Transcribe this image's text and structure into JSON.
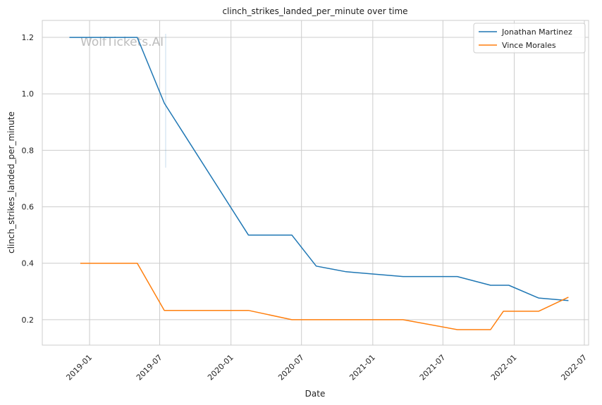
{
  "watermark": "WolfTickets.AI",
  "colors": {
    "series_1": "#1f77b4",
    "series_2": "#ff7f0e",
    "grid": "#cccccc",
    "frame": "#cccccc",
    "background": "#ffffff"
  },
  "chart_data": {
    "type": "line",
    "title": "clinch_strikes_landed_per_minute over time",
    "xlabel": "Date",
    "ylabel": "clinch_strikes_landed_per_minute",
    "x_type": "date",
    "xlim": [
      "2018-09-01",
      "2022-07-12"
    ],
    "ylim": [
      0.11,
      1.26
    ],
    "x_ticks": [
      "2019-01",
      "2019-07",
      "2020-01",
      "2020-07",
      "2021-01",
      "2021-07",
      "2022-01",
      "2022-07"
    ],
    "y_ticks": [
      "0.2",
      "0.4",
      "0.6",
      "0.8",
      "1.0",
      "1.2"
    ],
    "grid": true,
    "legend_position": "top-right",
    "series": [
      {
        "name": "Jonathan Martinez",
        "color": "#1f77b4",
        "points": [
          {
            "x": "2018-11-10",
            "y": 1.2
          },
          {
            "x": "2019-05-04",
            "y": 1.2
          },
          {
            "x": "2019-07-13",
            "y": 0.967
          },
          {
            "x": "2020-02-15",
            "y": 0.5
          },
          {
            "x": "2020-06-06",
            "y": 0.5
          },
          {
            "x": "2020-08-08",
            "y": 0.39
          },
          {
            "x": "2020-10-24",
            "y": 0.37
          },
          {
            "x": "2021-03-20",
            "y": 0.353
          },
          {
            "x": "2021-08-07",
            "y": 0.353
          },
          {
            "x": "2021-11-01",
            "y": 0.322
          },
          {
            "x": "2021-12-18",
            "y": 0.322
          },
          {
            "x": "2022-03-05",
            "y": 0.277
          },
          {
            "x": "2022-05-21",
            "y": 0.268
          }
        ]
      },
      {
        "name": "Vince Morales",
        "color": "#ff7f0e",
        "points": [
          {
            "x": "2018-12-08",
            "y": 0.4
          },
          {
            "x": "2019-05-04",
            "y": 0.4
          },
          {
            "x": "2019-07-13",
            "y": 0.233
          },
          {
            "x": "2020-02-15",
            "y": 0.233
          },
          {
            "x": "2020-06-06",
            "y": 0.2
          },
          {
            "x": "2021-03-20",
            "y": 0.2
          },
          {
            "x": "2021-08-07",
            "y": 0.165
          },
          {
            "x": "2021-11-01",
            "y": 0.165
          },
          {
            "x": "2021-12-04",
            "y": 0.23
          },
          {
            "x": "2022-03-05",
            "y": 0.23
          },
          {
            "x": "2022-05-21",
            "y": 0.28
          }
        ]
      }
    ]
  }
}
